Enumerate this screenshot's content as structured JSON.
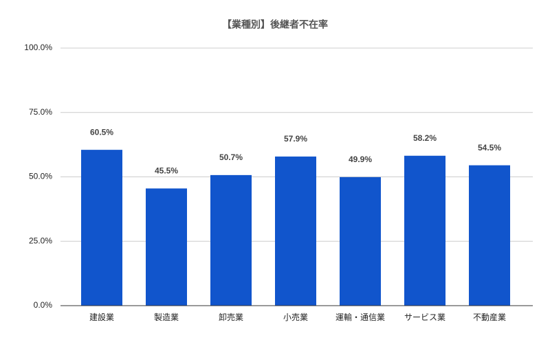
{
  "chart_data": {
    "type": "bar",
    "title": "【業種別】後継者不在率",
    "categories": [
      "建設業",
      "製造業",
      "卸売業",
      "小売業",
      "運輸・通信業",
      "サービス業",
      "不動産業"
    ],
    "values": [
      60.5,
      45.5,
      50.7,
      57.9,
      49.9,
      58.2,
      54.5
    ],
    "value_labels": [
      "60.5%",
      "45.5%",
      "50.7%",
      "57.9%",
      "49.9%",
      "58.2%",
      "54.5%"
    ],
    "color": "#1155cc",
    "ylim": [
      0,
      100
    ],
    "yticks": [
      {
        "value": 0,
        "label": "0.0%"
      },
      {
        "value": 25,
        "label": "25.0%"
      },
      {
        "value": 50,
        "label": "50.0%"
      },
      {
        "value": 75,
        "label": "75.0%"
      },
      {
        "value": 100,
        "label": "100.0%"
      }
    ],
    "grid": true
  }
}
